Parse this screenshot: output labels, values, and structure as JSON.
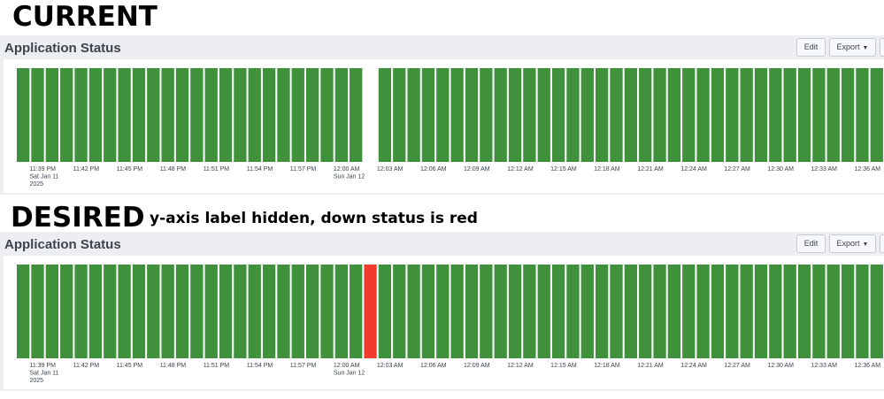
{
  "headings": {
    "current": "CURRENT",
    "desired": "DESIRED",
    "desired_note": "y-axis label hidden, down status is red"
  },
  "panel": {
    "title": "Application Status",
    "edit_label": "Edit",
    "export_label": "Export",
    "caret_glyph": "▼"
  },
  "chart_data": [
    {
      "type": "bar",
      "name": "current",
      "status_colors": {
        "up": "#3f913b",
        "down": "#ffffff"
      },
      "down_index": 24,
      "bar_count": 60,
      "x_labels": [
        {
          "lines": [
            "11:39 PM",
            "Sat Jan 11",
            "2025"
          ],
          "bar": 1
        },
        {
          "lines": [
            "11:42 PM"
          ],
          "bar": 4
        },
        {
          "lines": [
            "11:45 PM"
          ],
          "bar": 7
        },
        {
          "lines": [
            "11:48 PM"
          ],
          "bar": 10
        },
        {
          "lines": [
            "11:51 PM"
          ],
          "bar": 13
        },
        {
          "lines": [
            "11:54 PM"
          ],
          "bar": 16
        },
        {
          "lines": [
            "11:57 PM"
          ],
          "bar": 19
        },
        {
          "lines": [
            "12:00 AM",
            "Sun Jan 12"
          ],
          "bar": 22
        },
        {
          "lines": [
            "12:03 AM"
          ],
          "bar": 25
        },
        {
          "lines": [
            "12:06 AM"
          ],
          "bar": 28
        },
        {
          "lines": [
            "12:09 AM"
          ],
          "bar": 31
        },
        {
          "lines": [
            "12:12 AM"
          ],
          "bar": 34
        },
        {
          "lines": [
            "12:15 AM"
          ],
          "bar": 37
        },
        {
          "lines": [
            "12:18 AM"
          ],
          "bar": 40
        },
        {
          "lines": [
            "12:21 AM"
          ],
          "bar": 43
        },
        {
          "lines": [
            "12:24 AM"
          ],
          "bar": 46
        },
        {
          "lines": [
            "12:27 AM"
          ],
          "bar": 49
        },
        {
          "lines": [
            "12:30 AM"
          ],
          "bar": 52
        },
        {
          "lines": [
            "12:33 AM"
          ],
          "bar": 55
        },
        {
          "lines": [
            "12:36 AM"
          ],
          "bar": 58
        }
      ]
    },
    {
      "type": "bar",
      "name": "desired",
      "status_colors": {
        "up": "#3f913b",
        "down": "#f13b2c"
      },
      "down_index": 24,
      "bar_count": 60,
      "x_labels": [
        {
          "lines": [
            "11:39 PM",
            "Sat Jan 11",
            "2025"
          ],
          "bar": 1
        },
        {
          "lines": [
            "11:42 PM"
          ],
          "bar": 4
        },
        {
          "lines": [
            "11:45 PM"
          ],
          "bar": 7
        },
        {
          "lines": [
            "11:48 PM"
          ],
          "bar": 10
        },
        {
          "lines": [
            "11:51 PM"
          ],
          "bar": 13
        },
        {
          "lines": [
            "11:54 PM"
          ],
          "bar": 16
        },
        {
          "lines": [
            "11:57 PM"
          ],
          "bar": 19
        },
        {
          "lines": [
            "12:00 AM",
            "Sun Jan 12"
          ],
          "bar": 22
        },
        {
          "lines": [
            "12:03 AM"
          ],
          "bar": 25
        },
        {
          "lines": [
            "12:06 AM"
          ],
          "bar": 28
        },
        {
          "lines": [
            "12:09 AM"
          ],
          "bar": 31
        },
        {
          "lines": [
            "12:12 AM"
          ],
          "bar": 34
        },
        {
          "lines": [
            "12:15 AM"
          ],
          "bar": 37
        },
        {
          "lines": [
            "12:18 AM"
          ],
          "bar": 40
        },
        {
          "lines": [
            "12:21 AM"
          ],
          "bar": 43
        },
        {
          "lines": [
            "12:24 AM"
          ],
          "bar": 46
        },
        {
          "lines": [
            "12:27 AM"
          ],
          "bar": 49
        },
        {
          "lines": [
            "12:30 AM"
          ],
          "bar": 52
        },
        {
          "lines": [
            "12:33 AM"
          ],
          "bar": 55
        },
        {
          "lines": [
            "12:36 AM"
          ],
          "bar": 58
        }
      ]
    }
  ]
}
